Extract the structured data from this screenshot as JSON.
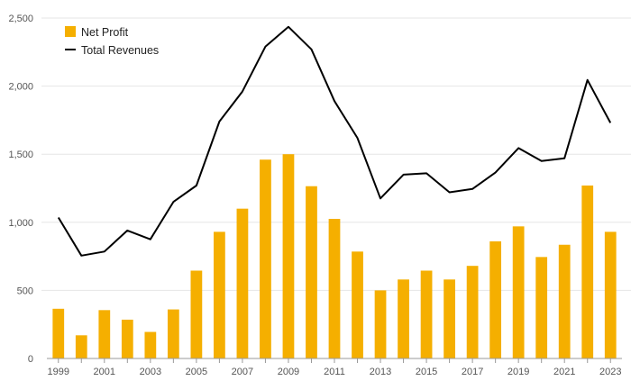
{
  "chart_data": {
    "type": "bar+line",
    "title": "",
    "xlabel": "",
    "ylabel": "",
    "ylim": [
      0,
      2500
    ],
    "yticks": [
      "0",
      "500",
      "1,000",
      "1,500",
      "2,000",
      "2,500"
    ],
    "xtick_labels": [
      "1999",
      "2001",
      "2003",
      "2005",
      "2007",
      "2009",
      "2011",
      "2013",
      "2015",
      "2017",
      "2019",
      "2021",
      "2023"
    ],
    "grid": true,
    "legend_position": "top-left",
    "categories": [
      1999,
      2000,
      2001,
      2002,
      2003,
      2004,
      2005,
      2006,
      2007,
      2008,
      2009,
      2010,
      2011,
      2012,
      2013,
      2014,
      2015,
      2016,
      2017,
      2018,
      2019,
      2020,
      2021,
      2022,
      2023
    ],
    "series": [
      {
        "name": "Net Profit",
        "kind": "bar",
        "color": "#F5AF00",
        "values": [
          365,
          170,
          355,
          285,
          195,
          360,
          645,
          930,
          1100,
          1460,
          1500,
          1265,
          1025,
          785,
          500,
          580,
          645,
          580,
          680,
          860,
          970,
          745,
          835,
          1270,
          930
        ]
      },
      {
        "name": "Total Revenues",
        "kind": "line",
        "color": "#000000",
        "values": [
          1035,
          755,
          785,
          940,
          875,
          1150,
          1270,
          1740,
          1960,
          2290,
          2435,
          2270,
          1890,
          1620,
          1175,
          1350,
          1360,
          1220,
          1245,
          1365,
          1545,
          1450,
          1470,
          2045,
          1730
        ]
      }
    ]
  }
}
